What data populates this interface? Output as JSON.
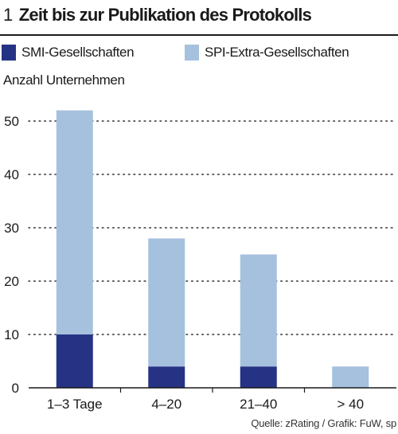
{
  "figure": {
    "number": "1",
    "title": "Zeit bis zur Publikation des Protokolls",
    "unit_label": "Anzahl Unternehmen",
    "source": "Quelle: zRating / Grafik: FuW, sp"
  },
  "colors": {
    "smi": "#263385",
    "spi_extra": "#a6c1dd",
    "grid": "#333333",
    "axis": "#1a1a1a"
  },
  "chart_data": {
    "type": "bar",
    "stacked": true,
    "categories": [
      "1–3 Tage",
      "4–20",
      "21–40",
      "> 40"
    ],
    "series": [
      {
        "name": "SMI-Gesellschaften",
        "values": [
          10,
          4,
          4,
          0
        ],
        "color": "#263385"
      },
      {
        "name": "SPI-Extra-Gesellschaften",
        "values": [
          42,
          24,
          21,
          4
        ],
        "color": "#a6c1dd"
      }
    ],
    "ylabel": "Anzahl Unternehmen",
    "ylim": [
      0,
      52
    ],
    "yticks": [
      0,
      10,
      20,
      30,
      40,
      50
    ],
    "grid": true,
    "legend": "top"
  }
}
